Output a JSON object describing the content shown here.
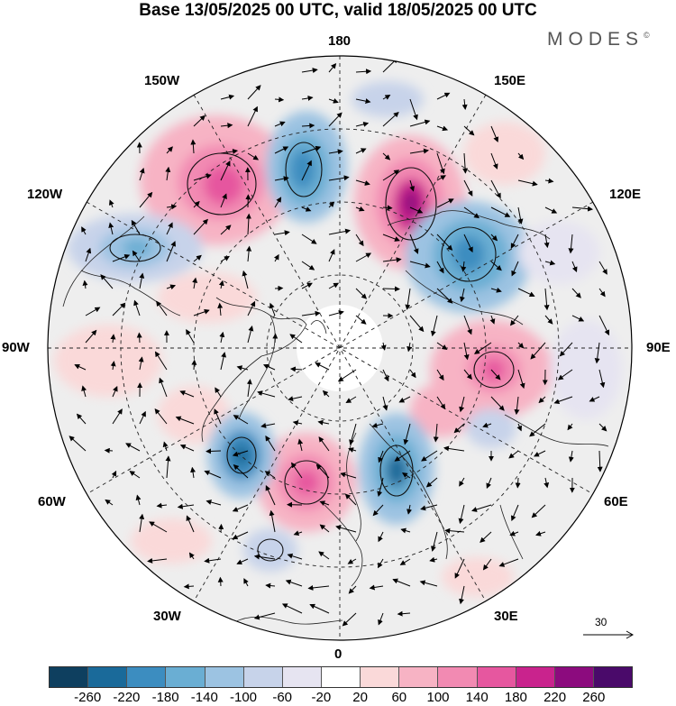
{
  "title": "Base 13/05/2025 00 UTC, valid 18/05/2025 00 UTC",
  "brand": "MODES",
  "brand_mark": "©",
  "longitude_labels": {
    "top": "180",
    "bottom": "0",
    "left": "90W",
    "right": "90E",
    "upper_left_a": "150W",
    "upper_right_a": "150E",
    "upper_left_b": "120W",
    "upper_right_b": "120E",
    "lower_left_a": "60W",
    "lower_right_a": "60E",
    "lower_left_b": "30W",
    "lower_right_b": "30E"
  },
  "wind_reference": "30",
  "colorbar": {
    "colors": [
      "#0e3f5f",
      "#1a6a9a",
      "#3c8dc0",
      "#6aaed3",
      "#9cc3e2",
      "#c7d3ea",
      "#e6e4f1",
      "#ffffff",
      "#fad9d9",
      "#f7b3c4",
      "#f28ab2",
      "#e6579f",
      "#c9238d",
      "#8c0b7e",
      "#4a0a6a"
    ],
    "ticks": [
      "-260",
      "-220",
      "-180",
      "-140",
      "-100",
      "-60",
      "-20",
      "20",
      "60",
      "100",
      "140",
      "180",
      "220",
      "260"
    ]
  }
}
